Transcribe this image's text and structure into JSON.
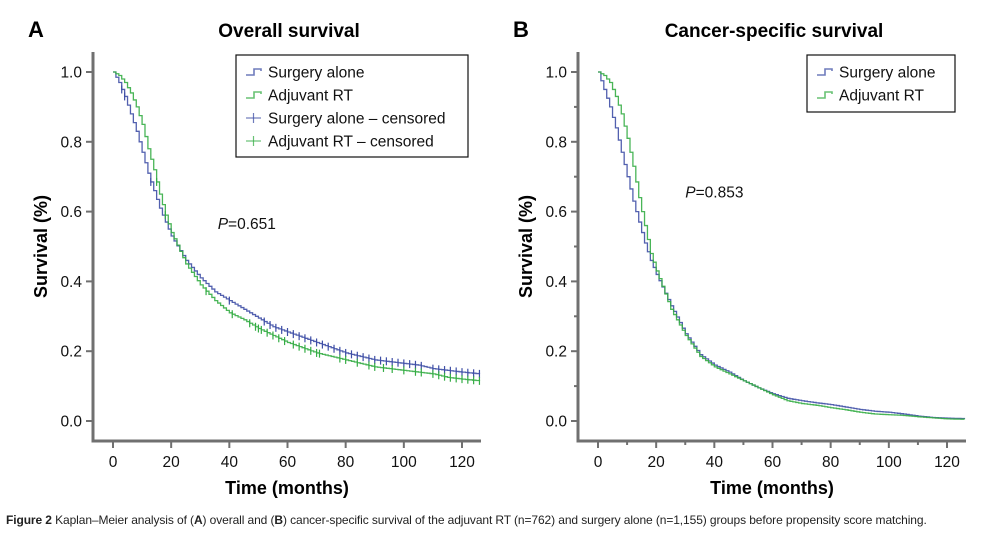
{
  "figure": {
    "caption_label": "Figure 2",
    "caption_parts": [
      {
        "text": " Kaplan–Meier analysis of (",
        "bold": false
      },
      {
        "text": "A",
        "bold": true
      },
      {
        "text": ") overall and (",
        "bold": false
      },
      {
        "text": "B",
        "bold": true
      },
      {
        "text": ") cancer-specific survival of the adjuvant RT (n=762) and surgery alone (n=1,155) groups before propensity score matching.",
        "bold": false
      }
    ]
  },
  "colors": {
    "surgery_alone": "#3f4fa6",
    "adjuvant_rt": "#35ad45",
    "axis": "#707070"
  },
  "chart_data": [
    {
      "type": "line",
      "subtype": "kaplan-meier-step",
      "panel_letter": "A",
      "title": "Overall survival",
      "xlabel": "Time (months)",
      "ylabel": "Survival (%)",
      "xlim": [
        -7,
        127
      ],
      "ylim": [
        -0.06,
        1.05
      ],
      "xticks": [
        0,
        20,
        40,
        60,
        80,
        100,
        120
      ],
      "yticks": [
        0.0,
        0.2,
        0.4,
        0.6,
        0.8,
        1.0
      ],
      "ytick_labels": [
        "0.0",
        "0.2",
        "0.4",
        "0.6",
        "0.8",
        "1.0"
      ],
      "minor_ticks": false,
      "grid": false,
      "legend_position": "top-right",
      "legend": [
        {
          "label": "Surgery alone",
          "kind": "step",
          "series": "surgery_alone"
        },
        {
          "label": "Adjuvant RT",
          "kind": "step",
          "series": "adjuvant_rt"
        },
        {
          "label": "Surgery alone – censored",
          "kind": "censor",
          "series": "surgery_alone"
        },
        {
          "label": "Adjuvant RT – censored",
          "kind": "censor",
          "series": "adjuvant_rt"
        }
      ],
      "annotation": {
        "p_label": "P",
        "p_value": "=0.651",
        "x": 36,
        "y": 0.55
      },
      "series": [
        {
          "name": "Surgery alone",
          "key": "surgery_alone",
          "x": [
            0,
            2,
            4,
            6,
            8,
            10,
            12,
            14,
            16,
            18,
            20,
            25,
            30,
            35,
            40,
            45,
            50,
            55,
            60,
            65,
            70,
            75,
            80,
            85,
            90,
            95,
            100,
            105,
            110,
            115,
            120,
            126
          ],
          "y": [
            1.0,
            0.97,
            0.93,
            0.88,
            0.83,
            0.77,
            0.71,
            0.66,
            0.61,
            0.57,
            0.53,
            0.46,
            0.41,
            0.37,
            0.345,
            0.32,
            0.295,
            0.27,
            0.255,
            0.24,
            0.225,
            0.21,
            0.195,
            0.185,
            0.175,
            0.17,
            0.165,
            0.16,
            0.15,
            0.145,
            0.14,
            0.135
          ],
          "censored_x": [
            3,
            4,
            13,
            40,
            52,
            54,
            56,
            58,
            60,
            62,
            64,
            66,
            68,
            70,
            72,
            74,
            76,
            78,
            80,
            82,
            84,
            86,
            88,
            90,
            92,
            94,
            96,
            98,
            100,
            102,
            104,
            106,
            110,
            112,
            114,
            116,
            118,
            120,
            122,
            124,
            126
          ]
        },
        {
          "name": "Adjuvant RT",
          "key": "adjuvant_rt",
          "x": [
            0,
            2,
            4,
            6,
            8,
            10,
            12,
            14,
            16,
            18,
            20,
            25,
            30,
            35,
            40,
            45,
            50,
            55,
            60,
            65,
            70,
            75,
            80,
            85,
            90,
            95,
            100,
            105,
            110,
            115,
            120,
            126
          ],
          "y": [
            1.0,
            0.99,
            0.97,
            0.94,
            0.9,
            0.85,
            0.78,
            0.72,
            0.65,
            0.59,
            0.54,
            0.45,
            0.39,
            0.345,
            0.31,
            0.29,
            0.265,
            0.245,
            0.225,
            0.21,
            0.195,
            0.185,
            0.175,
            0.165,
            0.155,
            0.15,
            0.145,
            0.14,
            0.135,
            0.125,
            0.12,
            0.115
          ],
          "censored_x": [
            15,
            18,
            32,
            41,
            47,
            49,
            50,
            51,
            53,
            55,
            57,
            59,
            62,
            64,
            66,
            68,
            70,
            71,
            78,
            80,
            84,
            88,
            90,
            93,
            96,
            100,
            104,
            106,
            110,
            112,
            114,
            116,
            118,
            120,
            122,
            124,
            126
          ]
        }
      ]
    },
    {
      "type": "line",
      "subtype": "kaplan-meier-step",
      "panel_letter": "B",
      "title": "Cancer-specific survival",
      "xlabel": "Time (months)",
      "ylabel": "Survival (%)",
      "xlim": [
        -7,
        127
      ],
      "ylim": [
        -0.06,
        1.05
      ],
      "xticks": [
        0,
        20,
        40,
        60,
        80,
        100,
        120
      ],
      "yticks": [
        0.0,
        0.2,
        0.4,
        0.6,
        0.8,
        1.0
      ],
      "ytick_labels": [
        "0.0",
        "0.2",
        "0.4",
        "0.6",
        "0.8",
        "1.0"
      ],
      "minor_ticks": true,
      "grid": false,
      "legend_position": "top-right",
      "legend": [
        {
          "label": "Surgery alone",
          "kind": "step",
          "series": "surgery_alone"
        },
        {
          "label": "Adjuvant RT",
          "kind": "step",
          "series": "adjuvant_rt"
        }
      ],
      "annotation": {
        "p_label": "P",
        "p_value": "=0.853",
        "x": 30,
        "y": 0.64
      },
      "series": [
        {
          "name": "Surgery alone",
          "key": "surgery_alone",
          "x": [
            0,
            2,
            4,
            6,
            8,
            10,
            12,
            14,
            16,
            18,
            20,
            25,
            30,
            35,
            40,
            45,
            50,
            55,
            60,
            65,
            70,
            75,
            80,
            85,
            90,
            95,
            100,
            105,
            110,
            115,
            120,
            126
          ],
          "y": [
            1.0,
            0.95,
            0.9,
            0.84,
            0.77,
            0.7,
            0.63,
            0.57,
            0.51,
            0.46,
            0.42,
            0.33,
            0.25,
            0.19,
            0.16,
            0.14,
            0.115,
            0.095,
            0.078,
            0.065,
            0.058,
            0.052,
            0.047,
            0.04,
            0.033,
            0.028,
            0.025,
            0.02,
            0.014,
            0.01,
            0.008,
            0.007
          ],
          "censored_x": []
        },
        {
          "name": "Adjuvant RT",
          "key": "adjuvant_rt",
          "x": [
            0,
            2,
            4,
            6,
            8,
            10,
            12,
            14,
            16,
            18,
            20,
            25,
            30,
            35,
            40,
            45,
            50,
            55,
            60,
            65,
            70,
            75,
            80,
            85,
            90,
            95,
            100,
            105,
            110,
            115,
            120,
            126
          ],
          "y": [
            1.0,
            0.99,
            0.97,
            0.93,
            0.88,
            0.81,
            0.73,
            0.64,
            0.56,
            0.48,
            0.43,
            0.32,
            0.245,
            0.185,
            0.155,
            0.135,
            0.115,
            0.095,
            0.075,
            0.058,
            0.05,
            0.045,
            0.038,
            0.032,
            0.025,
            0.02,
            0.018,
            0.016,
            0.012,
            0.009,
            0.006,
            0.005
          ],
          "censored_x": []
        }
      ]
    }
  ]
}
